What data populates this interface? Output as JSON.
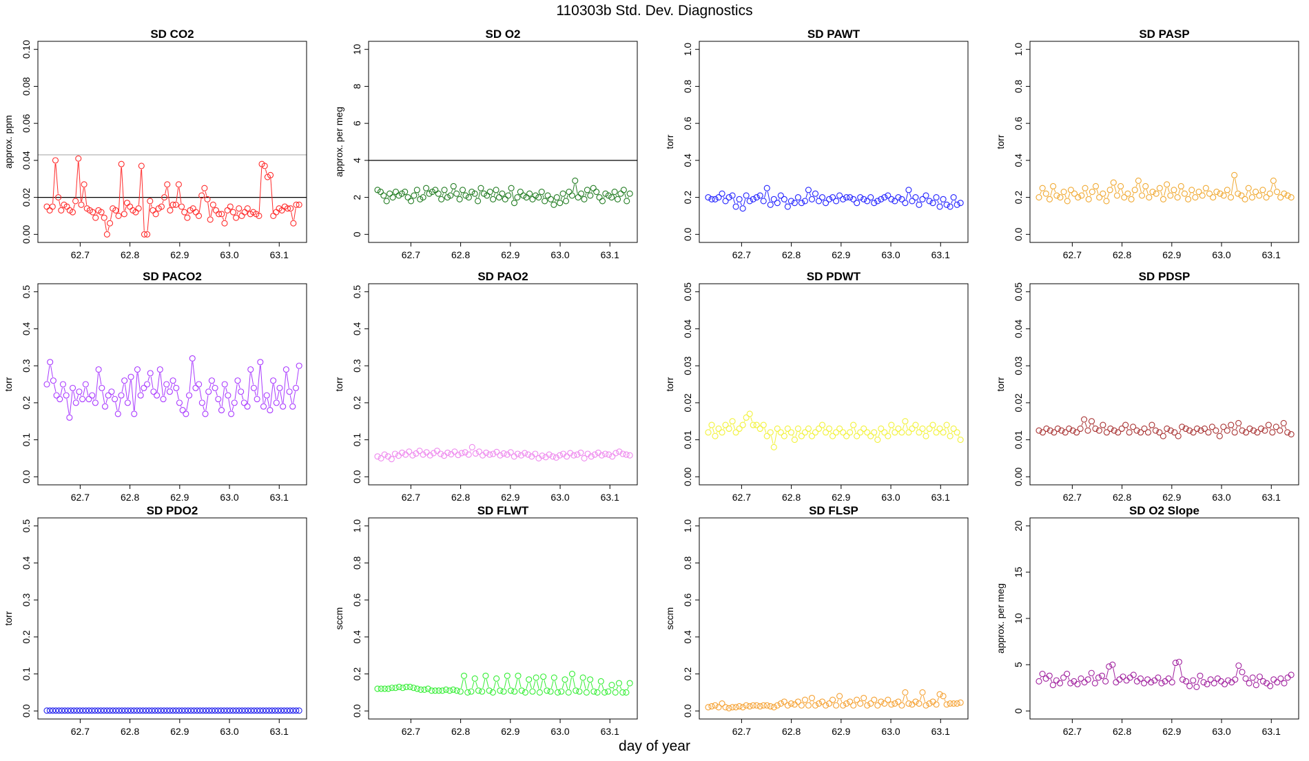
{
  "page": {
    "title": "110303b   Std. Dev. Diagnostics",
    "xlabel": "day of year"
  },
  "x_ticks": [
    62.7,
    62.8,
    62.9,
    63.0,
    63.1
  ],
  "x_tick_labels": [
    "62.7",
    "62.8",
    "62.9",
    "63.0",
    "63.1"
  ],
  "xlim": [
    62.615,
    63.155
  ],
  "chart_data": [
    {
      "type": "scatter",
      "title": "SD CO2",
      "ylabel": "approx. ppm",
      "color": "#ff2a2a",
      "ylim": [
        0,
        0.1
      ],
      "yticks": [
        0,
        0.02,
        0.04,
        0.06,
        0.08,
        0.1
      ],
      "ytick_labels": [
        "0.00",
        "0.02",
        "0.04",
        "0.06",
        "0.08",
        "0.10"
      ],
      "hlines": [
        {
          "y": 0.02,
          "color": "#000000"
        },
        {
          "y": 0.043,
          "color": "#bbbbbb"
        }
      ],
      "x_start": 62.633,
      "x_end": 63.14,
      "values": [
        0.015,
        0.013,
        0.015,
        0.04,
        0.02,
        0.013,
        0.016,
        0.015,
        0.013,
        0.012,
        0.018,
        0.041,
        0.016,
        0.027,
        0.014,
        0.013,
        0.012,
        0.009,
        0.013,
        0.012,
        0.009,
        0.0,
        0.006,
        0.014,
        0.013,
        0.01,
        0.038,
        0.011,
        0.017,
        0.015,
        0.013,
        0.012,
        0.014,
        0.037,
        0.0,
        0.0,
        0.018,
        0.013,
        0.011,
        0.014,
        0.015,
        0.02,
        0.027,
        0.013,
        0.016,
        0.016,
        0.027,
        0.015,
        0.012,
        0.009,
        0.013,
        0.014,
        0.012,
        0.01,
        0.021,
        0.025,
        0.019,
        0.008,
        0.016,
        0.013,
        0.011,
        0.011,
        0.006,
        0.013,
        0.015,
        0.012,
        0.009,
        0.014,
        0.01,
        0.012,
        0.014,
        0.011,
        0.012,
        0.011,
        0.01,
        0.038,
        0.037,
        0.031,
        0.032,
        0.01,
        0.012,
        0.014,
        0.013,
        0.015,
        0.014,
        0.014,
        0.006,
        0.016,
        0.016
      ]
    },
    {
      "type": "scatter",
      "title": "SD O2",
      "ylabel": "approx. per meg",
      "color": "#1f7a1f",
      "ylim": [
        0,
        10
      ],
      "yticks": [
        0,
        2,
        4,
        6,
        8,
        10
      ],
      "ytick_labels": [
        "0",
        "2",
        "4",
        "6",
        "8",
        "10"
      ],
      "hlines": [
        {
          "y": 4,
          "color": "#000000"
        }
      ],
      "x_start": 62.633,
      "x_end": 63.14,
      "values": [
        2.4,
        2.3,
        2.1,
        1.8,
        2.2,
        2.0,
        2.3,
        2.1,
        2.2,
        2.3,
        2.0,
        1.8,
        2.1,
        2.4,
        1.9,
        2.0,
        2.5,
        2.2,
        2.3,
        2.4,
        2.2,
        1.9,
        2.4,
        2.0,
        2.1,
        2.6,
        2.2,
        1.9,
        2.4,
        2.1,
        2.0,
        2.3,
        2.2,
        1.8,
        2.5,
        2.2,
        2.1,
        2.3,
        1.9,
        2.4,
        2.0,
        2.2,
        1.9,
        2.1,
        2.5,
        1.7,
        2.0,
        2.3,
        2.1,
        2.0,
        2.2,
        1.9,
        2.1,
        2.0,
        2.3,
        1.8,
        2.1,
        1.9,
        1.6,
        2.0,
        1.7,
        2.2,
        1.8,
        2.3,
        2.1,
        2.9,
        2.0,
        2.2,
        1.9,
        2.4,
        2.1,
        2.5,
        2.3,
        2.0,
        1.8,
        2.2,
        2.1,
        2.0,
        2.3,
        1.9,
        2.2,
        2.4,
        1.8,
        2.2
      ]
    },
    {
      "type": "scatter",
      "title": "SD PAWT",
      "ylabel": "torr",
      "color": "#1f1fff",
      "ylim": [
        0,
        1
      ],
      "yticks": [
        0,
        0.2,
        0.4,
        0.6,
        0.8,
        1.0
      ],
      "ytick_labels": [
        "0.0",
        "0.2",
        "0.4",
        "0.6",
        "0.8",
        "1.0"
      ],
      "hlines": [],
      "x_start": 62.633,
      "x_end": 63.14,
      "values": [
        0.2,
        0.19,
        0.19,
        0.2,
        0.22,
        0.18,
        0.2,
        0.21,
        0.15,
        0.19,
        0.14,
        0.21,
        0.18,
        0.19,
        0.2,
        0.21,
        0.18,
        0.25,
        0.16,
        0.19,
        0.17,
        0.21,
        0.19,
        0.15,
        0.18,
        0.17,
        0.2,
        0.17,
        0.18,
        0.24,
        0.19,
        0.22,
        0.18,
        0.2,
        0.17,
        0.19,
        0.2,
        0.18,
        0.21,
        0.19,
        0.2,
        0.2,
        0.19,
        0.17,
        0.2,
        0.19,
        0.18,
        0.2,
        0.17,
        0.18,
        0.19,
        0.2,
        0.21,
        0.19,
        0.18,
        0.2,
        0.19,
        0.17,
        0.24,
        0.18,
        0.2,
        0.16,
        0.19,
        0.21,
        0.18,
        0.17,
        0.2,
        0.15,
        0.19,
        0.16,
        0.15,
        0.2,
        0.16,
        0.17
      ]
    },
    {
      "type": "scatter",
      "title": "SD PASP",
      "ylabel": "torr",
      "color": "#f0a830",
      "ylim": [
        0,
        1
      ],
      "yticks": [
        0,
        0.2,
        0.4,
        0.6,
        0.8,
        1.0
      ],
      "ytick_labels": [
        "0.0",
        "0.2",
        "0.4",
        "0.6",
        "0.8",
        "1.0"
      ],
      "hlines": [],
      "x_start": 62.633,
      "x_end": 63.14,
      "values": [
        0.2,
        0.25,
        0.22,
        0.19,
        0.26,
        0.21,
        0.2,
        0.23,
        0.18,
        0.24,
        0.22,
        0.2,
        0.21,
        0.25,
        0.19,
        0.23,
        0.26,
        0.2,
        0.22,
        0.18,
        0.24,
        0.28,
        0.21,
        0.26,
        0.2,
        0.22,
        0.19,
        0.24,
        0.29,
        0.21,
        0.26,
        0.2,
        0.23,
        0.22,
        0.25,
        0.19,
        0.27,
        0.21,
        0.24,
        0.2,
        0.26,
        0.22,
        0.19,
        0.24,
        0.2,
        0.23,
        0.21,
        0.25,
        0.22,
        0.2,
        0.23,
        0.22,
        0.21,
        0.24,
        0.2,
        0.32,
        0.22,
        0.21,
        0.19,
        0.25,
        0.2,
        0.23,
        0.21,
        0.24,
        0.2,
        0.22,
        0.29,
        0.23,
        0.2,
        0.22,
        0.21,
        0.2
      ]
    },
    {
      "type": "scatter",
      "title": "SD PACO2",
      "ylabel": "torr",
      "color": "#a838ff",
      "ylim": [
        0,
        0.5
      ],
      "yticks": [
        0,
        0.1,
        0.2,
        0.3,
        0.4,
        0.5
      ],
      "ytick_labels": [
        "0.0",
        "0.1",
        "0.2",
        "0.3",
        "0.4",
        "0.5"
      ],
      "hlines": [],
      "x_start": 62.633,
      "x_end": 63.14,
      "values": [
        0.25,
        0.31,
        0.26,
        0.22,
        0.21,
        0.25,
        0.22,
        0.16,
        0.24,
        0.2,
        0.23,
        0.21,
        0.25,
        0.21,
        0.22,
        0.2,
        0.29,
        0.24,
        0.19,
        0.22,
        0.23,
        0.21,
        0.17,
        0.22,
        0.26,
        0.2,
        0.27,
        0.17,
        0.29,
        0.22,
        0.24,
        0.25,
        0.28,
        0.23,
        0.22,
        0.29,
        0.21,
        0.25,
        0.23,
        0.26,
        0.24,
        0.2,
        0.18,
        0.17,
        0.22,
        0.32,
        0.24,
        0.25,
        0.2,
        0.17,
        0.23,
        0.26,
        0.24,
        0.21,
        0.18,
        0.25,
        0.22,
        0.17,
        0.2,
        0.26,
        0.23,
        0.2,
        0.19,
        0.29,
        0.24,
        0.21,
        0.31,
        0.19,
        0.22,
        0.18,
        0.26,
        0.2,
        0.24,
        0.19,
        0.29,
        0.23,
        0.19,
        0.24,
        0.3
      ]
    },
    {
      "type": "scatter",
      "title": "SD PAO2",
      "ylabel": "torr",
      "color": "#ee88ee",
      "ylim": [
        0,
        0.5
      ],
      "yticks": [
        0,
        0.1,
        0.2,
        0.3,
        0.4,
        0.5
      ],
      "ytick_labels": [
        "0.0",
        "0.1",
        "0.2",
        "0.3",
        "0.4",
        "0.5"
      ],
      "hlines": [],
      "x_start": 62.633,
      "x_end": 63.14,
      "values": [
        0.055,
        0.05,
        0.06,
        0.055,
        0.048,
        0.062,
        0.057,
        0.065,
        0.06,
        0.068,
        0.058,
        0.063,
        0.07,
        0.06,
        0.066,
        0.058,
        0.064,
        0.07,
        0.062,
        0.057,
        0.065,
        0.061,
        0.068,
        0.059,
        0.064,
        0.066,
        0.06,
        0.08,
        0.063,
        0.068,
        0.058,
        0.065,
        0.06,
        0.062,
        0.067,
        0.058,
        0.063,
        0.06,
        0.066,
        0.055,
        0.062,
        0.058,
        0.064,
        0.06,
        0.055,
        0.062,
        0.05,
        0.057,
        0.053,
        0.06,
        0.055,
        0.052,
        0.058,
        0.062,
        0.055,
        0.064,
        0.058,
        0.06,
        0.065,
        0.05,
        0.062,
        0.055,
        0.06,
        0.065,
        0.058,
        0.062,
        0.06,
        0.055,
        0.064,
        0.068,
        0.062,
        0.06,
        0.058
      ]
    },
    {
      "type": "scatter",
      "title": "SD PDWT",
      "ylabel": "torr",
      "color": "#f2f23a",
      "ylim": [
        0,
        0.05
      ],
      "yticks": [
        0,
        0.01,
        0.02,
        0.03,
        0.04,
        0.05
      ],
      "ytick_labels": [
        "0.00",
        "0.01",
        "0.02",
        "0.03",
        "0.04",
        "0.05"
      ],
      "hlines": [],
      "x_start": 62.633,
      "x_end": 63.14,
      "values": [
        0.012,
        0.014,
        0.011,
        0.013,
        0.012,
        0.014,
        0.013,
        0.015,
        0.012,
        0.013,
        0.014,
        0.016,
        0.017,
        0.014,
        0.014,
        0.013,
        0.014,
        0.011,
        0.012,
        0.008,
        0.013,
        0.012,
        0.011,
        0.013,
        0.012,
        0.01,
        0.013,
        0.011,
        0.012,
        0.013,
        0.011,
        0.012,
        0.013,
        0.014,
        0.012,
        0.013,
        0.011,
        0.012,
        0.013,
        0.012,
        0.011,
        0.012,
        0.014,
        0.011,
        0.012,
        0.013,
        0.012,
        0.011,
        0.012,
        0.01,
        0.013,
        0.012,
        0.011,
        0.014,
        0.012,
        0.013,
        0.012,
        0.015,
        0.012,
        0.013,
        0.014,
        0.012,
        0.013,
        0.011,
        0.013,
        0.014,
        0.012,
        0.013,
        0.012,
        0.014,
        0.011,
        0.013,
        0.012,
        0.01
      ]
    },
    {
      "type": "scatter",
      "title": "SD PDSP",
      "ylabel": "torr",
      "color": "#a83232",
      "ylim": [
        0,
        0.05
      ],
      "yticks": [
        0,
        0.01,
        0.02,
        0.03,
        0.04,
        0.05
      ],
      "ytick_labels": [
        "0.00",
        "0.01",
        "0.02",
        "0.03",
        "0.04",
        "0.05"
      ],
      "hlines": [],
      "x_start": 62.633,
      "x_end": 63.14,
      "values": [
        0.0125,
        0.012,
        0.013,
        0.0125,
        0.012,
        0.013,
        0.0125,
        0.012,
        0.013,
        0.0125,
        0.012,
        0.013,
        0.0155,
        0.0125,
        0.015,
        0.013,
        0.0125,
        0.014,
        0.012,
        0.013,
        0.0125,
        0.012,
        0.013,
        0.014,
        0.012,
        0.0135,
        0.0125,
        0.012,
        0.013,
        0.012,
        0.014,
        0.0125,
        0.012,
        0.011,
        0.013,
        0.0125,
        0.012,
        0.011,
        0.0135,
        0.013,
        0.0125,
        0.012,
        0.013,
        0.0125,
        0.013,
        0.012,
        0.0135,
        0.0125,
        0.011,
        0.0135,
        0.0125,
        0.014,
        0.012,
        0.0145,
        0.0125,
        0.012,
        0.013,
        0.0125,
        0.012,
        0.013,
        0.0125,
        0.014,
        0.012,
        0.0135,
        0.0125,
        0.0145,
        0.012,
        0.0115
      ]
    },
    {
      "type": "scatter",
      "title": "SD PDO2",
      "ylabel": "torr",
      "color": "#2020ee",
      "ylim": [
        0,
        0.5
      ],
      "yticks": [
        0,
        0.1,
        0.2,
        0.3,
        0.4,
        0.5
      ],
      "ytick_labels": [
        "0.0",
        "0.1",
        "0.2",
        "0.3",
        "0.4",
        "0.5"
      ],
      "hlines": [],
      "x_start": 62.633,
      "x_end": 63.14,
      "values": [
        0.001,
        0.001,
        0.001,
        0.001,
        0.001,
        0.001,
        0.001,
        0.001,
        0.001,
        0.001,
        0.001,
        0.001,
        0.001,
        0.001,
        0.001,
        0.001,
        0.001,
        0.001,
        0.001,
        0.001,
        0.001,
        0.001,
        0.001,
        0.001,
        0.001,
        0.001,
        0.001,
        0.001,
        0.001,
        0.001,
        0.001,
        0.001,
        0.001,
        0.001,
        0.001,
        0.001,
        0.001,
        0.001,
        0.001,
        0.001,
        0.001,
        0.001,
        0.001,
        0.001,
        0.001,
        0.001,
        0.001,
        0.001,
        0.001,
        0.001,
        0.001,
        0.001,
        0.001,
        0.001,
        0.001,
        0.001,
        0.001,
        0.001,
        0.001,
        0.001,
        0.001,
        0.001,
        0.001,
        0.001,
        0.001,
        0.001,
        0.001,
        0.001,
        0.001,
        0.001,
        0.001,
        0.001,
        0.001,
        0.001,
        0.001,
        0.001,
        0.001,
        0.001,
        0.001,
        0.001,
        0.001,
        0.001,
        0.001,
        0.001,
        0.001
      ]
    },
    {
      "type": "scatter",
      "title": "SD FLWT",
      "ylabel": "sccm",
      "color": "#33ee33",
      "ylim": [
        0,
        1
      ],
      "yticks": [
        0,
        0.2,
        0.4,
        0.6,
        0.8,
        1.0
      ],
      "ytick_labels": [
        "0.0",
        "0.2",
        "0.4",
        "0.6",
        "0.8",
        "1.0"
      ],
      "hlines": [],
      "x_start": 62.633,
      "x_end": 63.14,
      "values": [
        0.12,
        0.12,
        0.12,
        0.12,
        0.125,
        0.125,
        0.13,
        0.125,
        0.13,
        0.13,
        0.125,
        0.12,
        0.115,
        0.115,
        0.12,
        0.11,
        0.11,
        0.11,
        0.11,
        0.115,
        0.11,
        0.115,
        0.11,
        0.105,
        0.19,
        0.1,
        0.105,
        0.175,
        0.11,
        0.105,
        0.19,
        0.11,
        0.1,
        0.175,
        0.11,
        0.105,
        0.19,
        0.11,
        0.105,
        0.19,
        0.11,
        0.1,
        0.17,
        0.105,
        0.18,
        0.1,
        0.185,
        0.11,
        0.105,
        0.18,
        0.1,
        0.105,
        0.17,
        0.1,
        0.2,
        0.11,
        0.105,
        0.18,
        0.1,
        0.17,
        0.105,
        0.1,
        0.16,
        0.1,
        0.105,
        0.14,
        0.1,
        0.15,
        0.1,
        0.1,
        0.15
      ]
    },
    {
      "type": "scatter",
      "title": "SD FLSP",
      "ylabel": "sccm",
      "color": "#f5a030",
      "ylim": [
        0,
        1
      ],
      "yticks": [
        0,
        0.2,
        0.4,
        0.6,
        0.8,
        1.0
      ],
      "ytick_labels": [
        "0.0",
        "0.2",
        "0.4",
        "0.6",
        "0.8",
        "1.0"
      ],
      "hlines": [],
      "x_start": 62.633,
      "x_end": 63.14,
      "values": [
        0.02,
        0.025,
        0.03,
        0.02,
        0.04,
        0.02,
        0.015,
        0.02,
        0.02,
        0.025,
        0.02,
        0.03,
        0.025,
        0.03,
        0.03,
        0.025,
        0.03,
        0.03,
        0.025,
        0.02,
        0.03,
        0.04,
        0.05,
        0.03,
        0.04,
        0.035,
        0.05,
        0.03,
        0.06,
        0.03,
        0.07,
        0.03,
        0.04,
        0.05,
        0.03,
        0.04,
        0.06,
        0.03,
        0.08,
        0.03,
        0.04,
        0.05,
        0.03,
        0.06,
        0.04,
        0.07,
        0.03,
        0.04,
        0.06,
        0.03,
        0.05,
        0.04,
        0.06,
        0.035,
        0.04,
        0.05,
        0.03,
        0.1,
        0.04,
        0.035,
        0.05,
        0.04,
        0.1,
        0.03,
        0.04,
        0.05,
        0.035,
        0.09,
        0.08,
        0.035,
        0.04,
        0.04,
        0.04,
        0.045
      ]
    },
    {
      "type": "scatter",
      "title": "SD O2 Slope",
      "ylabel": "approx. per meg",
      "color": "#a0209e",
      "ylim": [
        0,
        20
      ],
      "yticks": [
        0,
        5,
        10,
        15,
        20
      ],
      "ytick_labels": [
        "0",
        "5",
        "10",
        "15",
        "20"
      ],
      "hlines": [],
      "x_start": 62.633,
      "x_end": 63.14,
      "values": [
        3.2,
        4.0,
        3.5,
        3.8,
        2.8,
        3.3,
        3.0,
        3.6,
        4.0,
        3.0,
        3.2,
        2.9,
        3.5,
        3.1,
        3.4,
        4.1,
        3.0,
        3.6,
        3.8,
        3.2,
        4.8,
        5.0,
        3.1,
        3.4,
        3.7,
        3.3,
        3.6,
        3.9,
        3.2,
        3.5,
        3.0,
        3.4,
        3.1,
        3.3,
        3.6,
        3.0,
        3.2,
        3.5,
        3.1,
        5.2,
        5.3,
        3.4,
        3.2,
        2.7,
        3.3,
        2.6,
        3.8,
        3.1,
        2.9,
        3.4,
        3.0,
        3.5,
        3.2,
        2.9,
        3.3,
        3.1,
        3.4,
        4.9,
        4.2,
        3.5,
        3.0,
        3.6,
        2.8,
        3.7,
        3.2,
        3.0,
        2.7,
        3.4,
        3.1,
        3.5,
        3.0,
        3.6,
        3.9
      ]
    }
  ]
}
